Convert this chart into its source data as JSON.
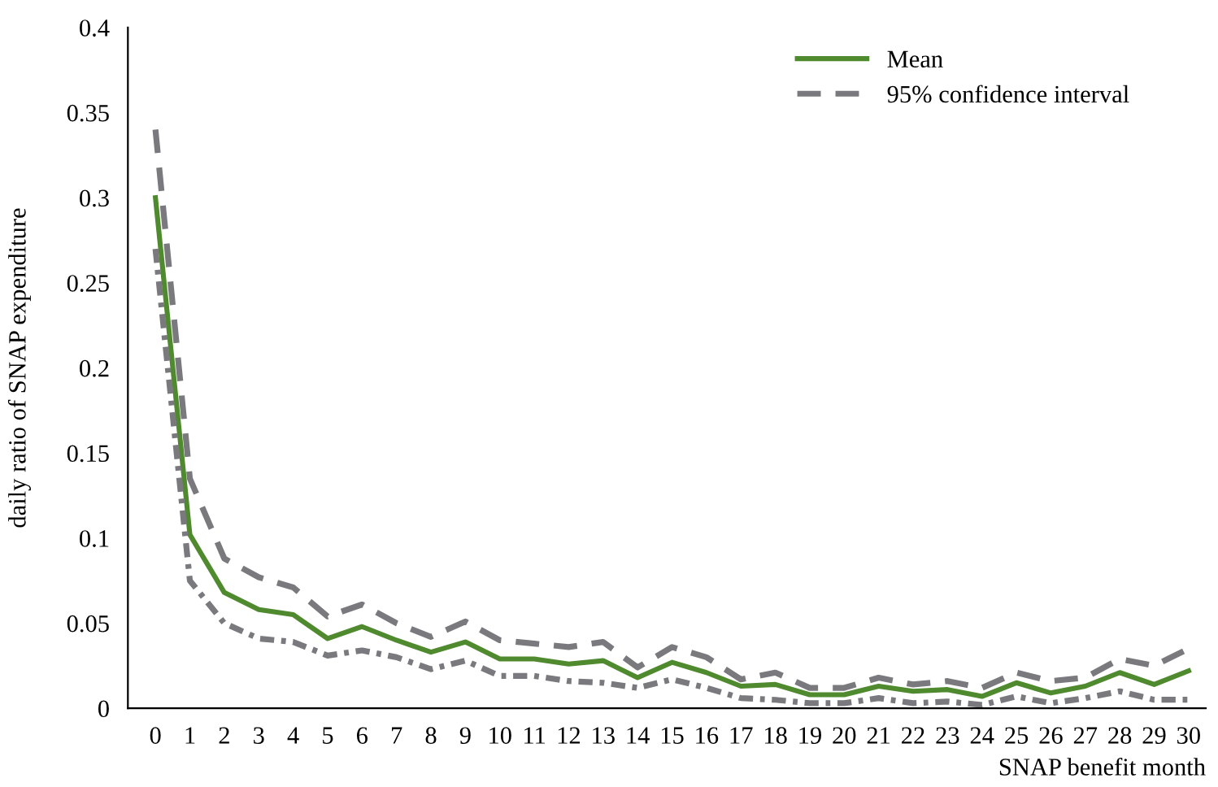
{
  "chart_data": {
    "type": "line",
    "xlabel": "SNAP benefit month",
    "ylabel": "daily ratio of SNAP expenditure",
    "categories": [
      "0",
      "1",
      "2",
      "3",
      "4",
      "5",
      "6",
      "7",
      "8",
      "9",
      "10",
      "11",
      "12",
      "13",
      "14",
      "15",
      "16",
      "17",
      "18",
      "19",
      "20",
      "21",
      "22",
      "23",
      "24",
      "25",
      "26",
      "27",
      "28",
      "29",
      "30"
    ],
    "series": [
      {
        "name": "Mean",
        "color": "#4f8a2f",
        "line_style": "solid",
        "values": [
          0.3,
          0.102,
          0.068,
          0.058,
          0.055,
          0.041,
          0.048,
          0.04,
          0.033,
          0.039,
          0.029,
          0.029,
          0.026,
          0.028,
          0.018,
          0.027,
          0.021,
          0.013,
          0.014,
          0.008,
          0.008,
          0.013,
          0.01,
          0.011,
          0.007,
          0.015,
          0.009,
          0.013,
          0.021,
          0.014,
          0.022
        ]
      },
      {
        "name": "95% confidence interval",
        "color": "#7a797e",
        "line_style": "dashed",
        "values": [
          0.34,
          0.135,
          0.088,
          0.077,
          0.071,
          0.054,
          0.061,
          0.05,
          0.042,
          0.051,
          0.04,
          0.038,
          0.036,
          0.039,
          0.024,
          0.036,
          0.03,
          0.017,
          0.021,
          0.012,
          0.012,
          0.018,
          0.014,
          0.016,
          0.012,
          0.021,
          0.016,
          0.018,
          0.029,
          0.025,
          0.035
        ]
      },
      {
        "color": "#7a797e",
        "line_style": "dashdot",
        "values": [
          0.27,
          0.075,
          0.05,
          0.041,
          0.039,
          0.031,
          0.034,
          0.03,
          0.023,
          0.028,
          0.019,
          0.019,
          0.016,
          0.015,
          0.012,
          0.017,
          0.012,
          0.006,
          0.005,
          0.003,
          0.003,
          0.006,
          0.003,
          0.004,
          0.002,
          0.007,
          0.003,
          0.006,
          0.01,
          0.005,
          0.005
        ]
      }
    ],
    "ylim": [
      0,
      0.4
    ],
    "yticks": [
      0,
      0.05,
      0.1,
      0.15,
      0.2,
      0.25,
      0.3,
      0.35,
      0.4
    ],
    "grid": false,
    "legend": "top right",
    "marker": "none"
  }
}
